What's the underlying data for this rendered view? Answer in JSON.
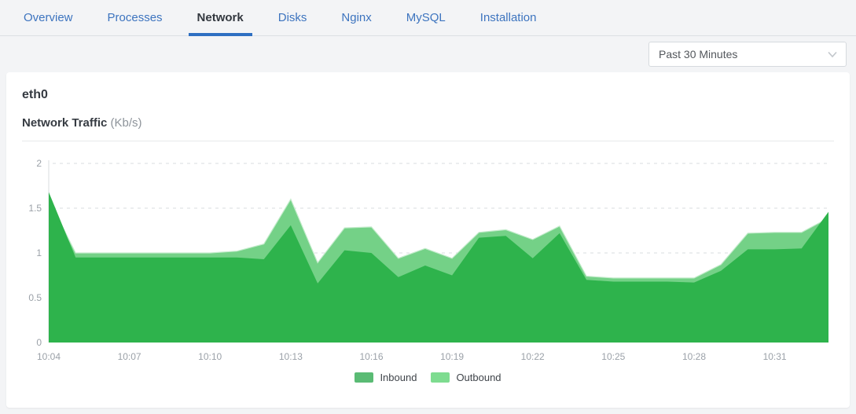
{
  "tabs": {
    "items": [
      {
        "label": "Overview",
        "active": false
      },
      {
        "label": "Processes",
        "active": false
      },
      {
        "label": "Network",
        "active": true
      },
      {
        "label": "Disks",
        "active": false
      },
      {
        "label": "Nginx",
        "active": false
      },
      {
        "label": "MySQL",
        "active": false
      },
      {
        "label": "Installation",
        "active": false
      }
    ]
  },
  "toolbar": {
    "time_range_value": "Past 30 Minutes",
    "chevron_icon": "chevron-down-icon"
  },
  "card": {
    "interface_name": "eth0",
    "chart_title": "Network Traffic",
    "chart_unit": "(Kb/s)"
  },
  "ui_colors": {
    "tab_link_blue": "#3d74bf",
    "active_tab_underline": "#2e6fc2",
    "page_background": "#f3f4f6",
    "card_background": "#ffffff"
  },
  "chart_data": {
    "type": "area",
    "title": "Network Traffic (Kb/s)",
    "xlabel": "",
    "ylabel": "",
    "ylim": [
      0,
      2
    ],
    "yticks": [
      0,
      0.5,
      1,
      1.5,
      2
    ],
    "grid": "horizontal-dashed",
    "legend_position": "bottom",
    "x": [
      "10:04",
      "10:05",
      "10:06",
      "10:07",
      "10:08",
      "10:09",
      "10:10",
      "10:11",
      "10:12",
      "10:13",
      "10:14",
      "10:15",
      "10:16",
      "10:17",
      "10:18",
      "10:19",
      "10:20",
      "10:21",
      "10:22",
      "10:23",
      "10:24",
      "10:25",
      "10:26",
      "10:27",
      "10:28",
      "10:29",
      "10:30",
      "10:31",
      "10:32",
      "10:33"
    ],
    "x_tick_labels": [
      "10:04",
      "10:07",
      "10:10",
      "10:13",
      "10:16",
      "10:19",
      "10:22",
      "10:25",
      "10:28",
      "10:31"
    ],
    "series": [
      {
        "name": "Inbound",
        "fill": "#2eb34c",
        "legend_color": "#5abb74",
        "values": [
          1.68,
          0.95,
          0.95,
          0.95,
          0.95,
          0.95,
          0.95,
          0.95,
          0.93,
          1.31,
          0.66,
          1.03,
          1.0,
          0.73,
          0.86,
          0.75,
          1.17,
          1.19,
          0.94,
          1.22,
          0.7,
          0.68,
          0.68,
          0.68,
          0.67,
          0.8,
          1.04,
          1.04,
          1.05,
          1.46
        ]
      },
      {
        "name": "Outbound",
        "fill": "#74d187",
        "stroke": "#c2ebca",
        "legend_color": "#7edc90",
        "values": [
          1.6,
          1.0,
          1.0,
          1.0,
          1.0,
          1.0,
          1.0,
          1.02,
          1.1,
          1.6,
          0.89,
          1.28,
          1.29,
          0.94,
          1.05,
          0.94,
          1.23,
          1.26,
          1.15,
          1.3,
          0.74,
          0.72,
          0.72,
          0.72,
          0.72,
          0.87,
          1.22,
          1.23,
          1.23,
          1.39
        ]
      }
    ]
  }
}
